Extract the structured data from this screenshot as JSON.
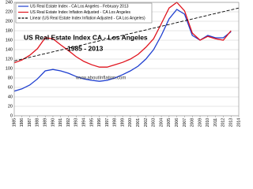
{
  "chart_data": {
    "type": "line",
    "title": "US Real Estate Index  CA - Los Angeles",
    "subtitle": "1985 - 2013",
    "annotation": "www.aboutInflation.com",
    "x": [
      1985,
      1986,
      1987,
      1988,
      1989,
      1990,
      1991,
      1992,
      1993,
      1994,
      1995,
      1996,
      1997,
      1998,
      1999,
      2000,
      2001,
      2002,
      2003,
      2004,
      2005,
      2006,
      2007,
      2008,
      2009,
      2010,
      2011,
      2012,
      2013
    ],
    "series": [
      {
        "name": "US Real Estate Index - CA Los Angeles - February 2013",
        "color": "#1f3fd0",
        "values": [
          52,
          57,
          65,
          78,
          95,
          98,
          95,
          90,
          83,
          78,
          75,
          73,
          75,
          80,
          87,
          95,
          105,
          120,
          140,
          170,
          205,
          225,
          215,
          170,
          160,
          170,
          165,
          165,
          178
        ]
      },
      {
        "name": "US Real Estate Index Inflation Adjusted - CA Los Angeles",
        "color": "#e0141e",
        "values": [
          112,
          118,
          128,
          142,
          165,
          163,
          150,
          138,
          125,
          115,
          108,
          103,
          103,
          108,
          113,
          120,
          130,
          145,
          163,
          195,
          228,
          240,
          222,
          175,
          160,
          168,
          163,
          160,
          180
        ]
      },
      {
        "name": "Linear (US Real Estate Index Inflation Adjusted - CA Los Angeles)",
        "color": "#000000",
        "dashed": true,
        "x": [
          1985,
          2014
        ],
        "values": [
          116,
          228
        ]
      }
    ],
    "xlim": [
      1985,
      2014
    ],
    "xticks": [
      1985,
      1986,
      1987,
      1988,
      1989,
      1990,
      1991,
      1992,
      1993,
      1994,
      1995,
      1996,
      1997,
      1998,
      1999,
      2000,
      2001,
      2002,
      2003,
      2004,
      2005,
      2006,
      2007,
      2008,
      2009,
      2010,
      2011,
      2012,
      2013,
      2014
    ],
    "ylim": [
      0,
      240
    ],
    "yticks": [
      0,
      20,
      40,
      60,
      80,
      100,
      120,
      140,
      160,
      180,
      200,
      220,
      240
    ],
    "grid": true
  }
}
